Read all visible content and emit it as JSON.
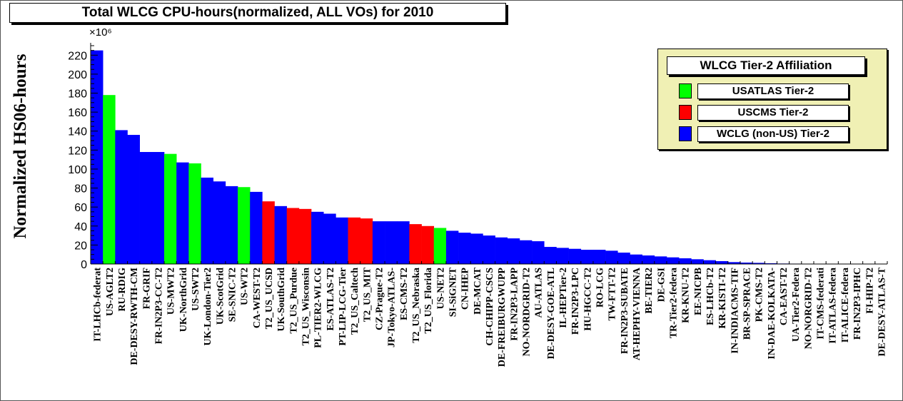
{
  "title": "Total WLCG CPU-hours(normalized, ALL VOs) for 2010",
  "legend": {
    "title": "WLCG Tier-2 Affiliation",
    "items": [
      {
        "label": "USATLAS Tier-2",
        "color": "#00ff00"
      },
      {
        "label": "USCMS Tier-2",
        "color": "#ff0000"
      },
      {
        "label": "WCLG (non-US) Tier-2",
        "color": "#0000ff"
      }
    ]
  },
  "chart_data": {
    "type": "bar",
    "title": "Total WLCG CPU-hours(normalized, ALL VOs) for 2010",
    "xlabel": "",
    "ylabel": "Normalized HS06-hours",
    "y_multiplier": "×10⁶",
    "ylim": [
      0,
      230
    ],
    "yticks": [
      0,
      20,
      40,
      60,
      80,
      100,
      120,
      140,
      160,
      180,
      200,
      220
    ],
    "grid": false,
    "legend_position": "top-right",
    "colors": {
      "atlas": "#00ff00",
      "cms": "#ff0000",
      "wlcg": "#0000ff"
    },
    "categories": [
      "IT-LHCb-federat",
      "US-AGLT2",
      "RU-RDIG",
      "DE-DESY-RWTH-CM",
      "FR-GRIF",
      "FR-IN2P3-CC-T2",
      "US-MWT2",
      "UK-NorthGrid",
      "US-SWT2",
      "UK-London-Tier2",
      "UK-ScotGrid",
      "SE-SNIC-T2",
      "US-WT2",
      "CA-WEST-T2",
      "T2_US_UCSD",
      "UK-SouthGrid",
      "T2_US_Purdue",
      "T2_US_Wisconsin",
      "PL-TIER2-WLCG",
      "ES-ATLAS-T2",
      "PT-LIP-LCG-Tier",
      "T2_US_Caltech",
      "T2_US_MIT",
      "CZ-Prague-T2",
      "JP-Tokyo-ATLAS-",
      "ES-CMS-T2",
      "T2_US_Nebraska",
      "T2_US_Florida",
      "US-NET2",
      "SI-SiGNET",
      "CN-IHEP",
      "DE-MCAT",
      "CH-CHIPP-CSCS",
      "DE-FREIBURGWUPP",
      "FR-IN2P3-LAPP",
      "NO-NORDGRID-T2",
      "AU-ATLAS",
      "DE-DESY-GOE-ATL",
      "IL-HEPTier-2",
      "FR-IN2P3-LPC",
      "HU-HGCC-T2",
      "RO-LCG",
      "TW-FTT-T2",
      "FR-IN2P3-SUBATE",
      "AT-HEPHY-VIENNA",
      "BE-TIER2",
      "DE-GSI",
      "TR-Tier2-federa",
      "KR-KNU-T2",
      "EE-NICPB",
      "ES-LHCb-T2",
      "KR-KISTI-T2",
      "IN-INDIACMS-TIF",
      "BR-SP-SPRACE",
      "PK-CMS-T2",
      "IN-DAE-KOLKATA-",
      "CA-EAST-T2",
      "UA-Tier2-Federa",
      "NO-NORGRID-T2",
      "IT-CMS-federati",
      "IT-ATLAS-federa",
      "IT-ALICE-federa",
      "FR-IN2P3-IPHC",
      "FI-HIP-T2",
      "DE-DESY-ATLAS-T"
    ],
    "series": [
      {
        "values": [
          225,
          178,
          141,
          136,
          118,
          118,
          116,
          107,
          106,
          91,
          87,
          82,
          81,
          76,
          66,
          61,
          59,
          58,
          55,
          53,
          49,
          49,
          48,
          45,
          45,
          45,
          42,
          40,
          38,
          35,
          33,
          32,
          30,
          28,
          27,
          25,
          24,
          18,
          17,
          16,
          15,
          15,
          14,
          12,
          10,
          9,
          8,
          7,
          6,
          5,
          4,
          3,
          2,
          1.5,
          1.2,
          0.8,
          0.5,
          0.4,
          0.3,
          0.2,
          0.2,
          0.1,
          0.1,
          0.1,
          0.1
        ]
      }
    ],
    "affiliation": [
      "wlcg",
      "atlas",
      "wlcg",
      "wlcg",
      "wlcg",
      "wlcg",
      "atlas",
      "wlcg",
      "atlas",
      "wlcg",
      "wlcg",
      "wlcg",
      "atlas",
      "wlcg",
      "cms",
      "wlcg",
      "cms",
      "cms",
      "wlcg",
      "wlcg",
      "wlcg",
      "cms",
      "cms",
      "wlcg",
      "wlcg",
      "wlcg",
      "cms",
      "cms",
      "atlas",
      "wlcg",
      "wlcg",
      "wlcg",
      "wlcg",
      "wlcg",
      "wlcg",
      "wlcg",
      "wlcg",
      "wlcg",
      "wlcg",
      "wlcg",
      "wlcg",
      "wlcg",
      "wlcg",
      "wlcg",
      "wlcg",
      "wlcg",
      "wlcg",
      "wlcg",
      "wlcg",
      "wlcg",
      "wlcg",
      "wlcg",
      "wlcg",
      "wlcg",
      "wlcg",
      "wlcg",
      "wlcg",
      "wlcg",
      "wlcg",
      "wlcg",
      "wlcg",
      "wlcg",
      "wlcg",
      "wlcg",
      "wlcg"
    ]
  }
}
